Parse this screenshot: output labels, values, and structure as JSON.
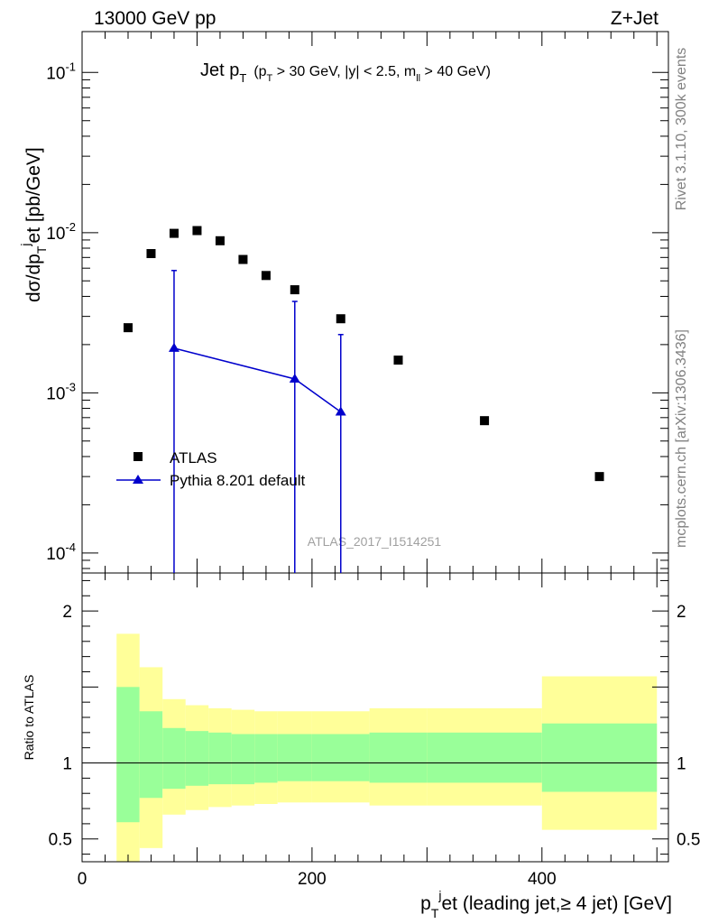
{
  "header": {
    "left": "13000 GeV pp",
    "right": "Z+Jet"
  },
  "side_labels": {
    "top": "Rivet 3.1.10,  300k events",
    "bottom": "mcplots.cern.ch [arXiv:1306.3436]"
  },
  "watermark": "ATLAS_2017_I1514251",
  "title": {
    "main": "Jet p",
    "main_sub": "T",
    "cut_open": "(p",
    "cut_sub": "T",
    "cut_mid": " > 30 GeV, |y| < 2.5, m",
    "cut_sub2": "ll",
    "cut_close": " > 40 GeV)"
  },
  "legend": {
    "data_label": "ATLAS",
    "mc_label": "Pythia 8.201 default"
  },
  "colors": {
    "data": "#000000",
    "mc": "#0000cc",
    "band_inner": "#99ff99",
    "band_outer": "#ffff99"
  },
  "chart_data": [
    {
      "type": "scatter",
      "ylabel": "dσ/dp_T^j et [pb/GeV]",
      "yscale": "log",
      "ylim": [
        7.5e-05,
        0.18
      ],
      "xlim": [
        0,
        510
      ],
      "y_tick_labels": [
        "10^-4",
        "10^-3",
        "10^-2",
        "10^-1"
      ],
      "series": [
        {
          "name": "ATLAS",
          "marker": "square",
          "x": [
            40,
            60,
            80,
            100,
            120,
            140,
            160,
            185,
            225,
            275,
            350,
            450
          ],
          "y": [
            0.00255,
            0.0074,
            0.0099,
            0.0103,
            0.0089,
            0.0068,
            0.0054,
            0.0044,
            0.0029,
            0.0016,
            0.00067,
            0.0003
          ]
        },
        {
          "name": "Pythia 8.201 default",
          "marker": "triangle",
          "x": [
            80,
            185,
            225
          ],
          "y": [
            0.0019,
            0.00122,
            0.00076
          ],
          "yerr_low": [
            0.0019,
            0.00122,
            0.00076
          ],
          "yerr_high": [
            0.0039,
            0.0025,
            0.00155
          ]
        }
      ]
    },
    {
      "type": "area",
      "ylabel": "Ratio to ATLAS",
      "xlabel": "p_T^j et (leading jet,≥ 4 jet) [GeV]",
      "ylim": [
        0.35,
        2.25
      ],
      "xlim": [
        0,
        510
      ],
      "x_tick_labels": [
        "0",
        "200",
        "400"
      ],
      "y_tick_labels": [
        "0.5",
        "1",
        "2"
      ],
      "reference_line": 1,
      "bins": [
        {
          "x0": 30,
          "x1": 50,
          "inner": [
            0.61,
            1.5
          ],
          "outer": [
            0.3,
            1.85
          ]
        },
        {
          "x0": 50,
          "x1": 70,
          "inner": [
            0.77,
            1.34
          ],
          "outer": [
            0.44,
            1.63
          ]
        },
        {
          "x0": 70,
          "x1": 90,
          "inner": [
            0.83,
            1.23
          ],
          "outer": [
            0.66,
            1.42
          ]
        },
        {
          "x0": 90,
          "x1": 110,
          "inner": [
            0.85,
            1.21
          ],
          "outer": [
            0.69,
            1.38
          ]
        },
        {
          "x0": 110,
          "x1": 130,
          "inner": [
            0.86,
            1.2
          ],
          "outer": [
            0.71,
            1.36
          ]
        },
        {
          "x0": 130,
          "x1": 150,
          "inner": [
            0.86,
            1.19
          ],
          "outer": [
            0.72,
            1.35
          ]
        },
        {
          "x0": 150,
          "x1": 170,
          "inner": [
            0.87,
            1.19
          ],
          "outer": [
            0.73,
            1.34
          ]
        },
        {
          "x0": 170,
          "x1": 200,
          "inner": [
            0.88,
            1.19
          ],
          "outer": [
            0.74,
            1.34
          ]
        },
        {
          "x0": 200,
          "x1": 250,
          "inner": [
            0.88,
            1.19
          ],
          "outer": [
            0.74,
            1.34
          ]
        },
        {
          "x0": 250,
          "x1": 300,
          "inner": [
            0.87,
            1.2
          ],
          "outer": [
            0.72,
            1.36
          ]
        },
        {
          "x0": 300,
          "x1": 400,
          "inner": [
            0.87,
            1.2
          ],
          "outer": [
            0.72,
            1.36
          ]
        },
        {
          "x0": 400,
          "x1": 500,
          "inner": [
            0.81,
            1.26
          ],
          "outer": [
            0.56,
            1.57
          ]
        }
      ]
    }
  ]
}
